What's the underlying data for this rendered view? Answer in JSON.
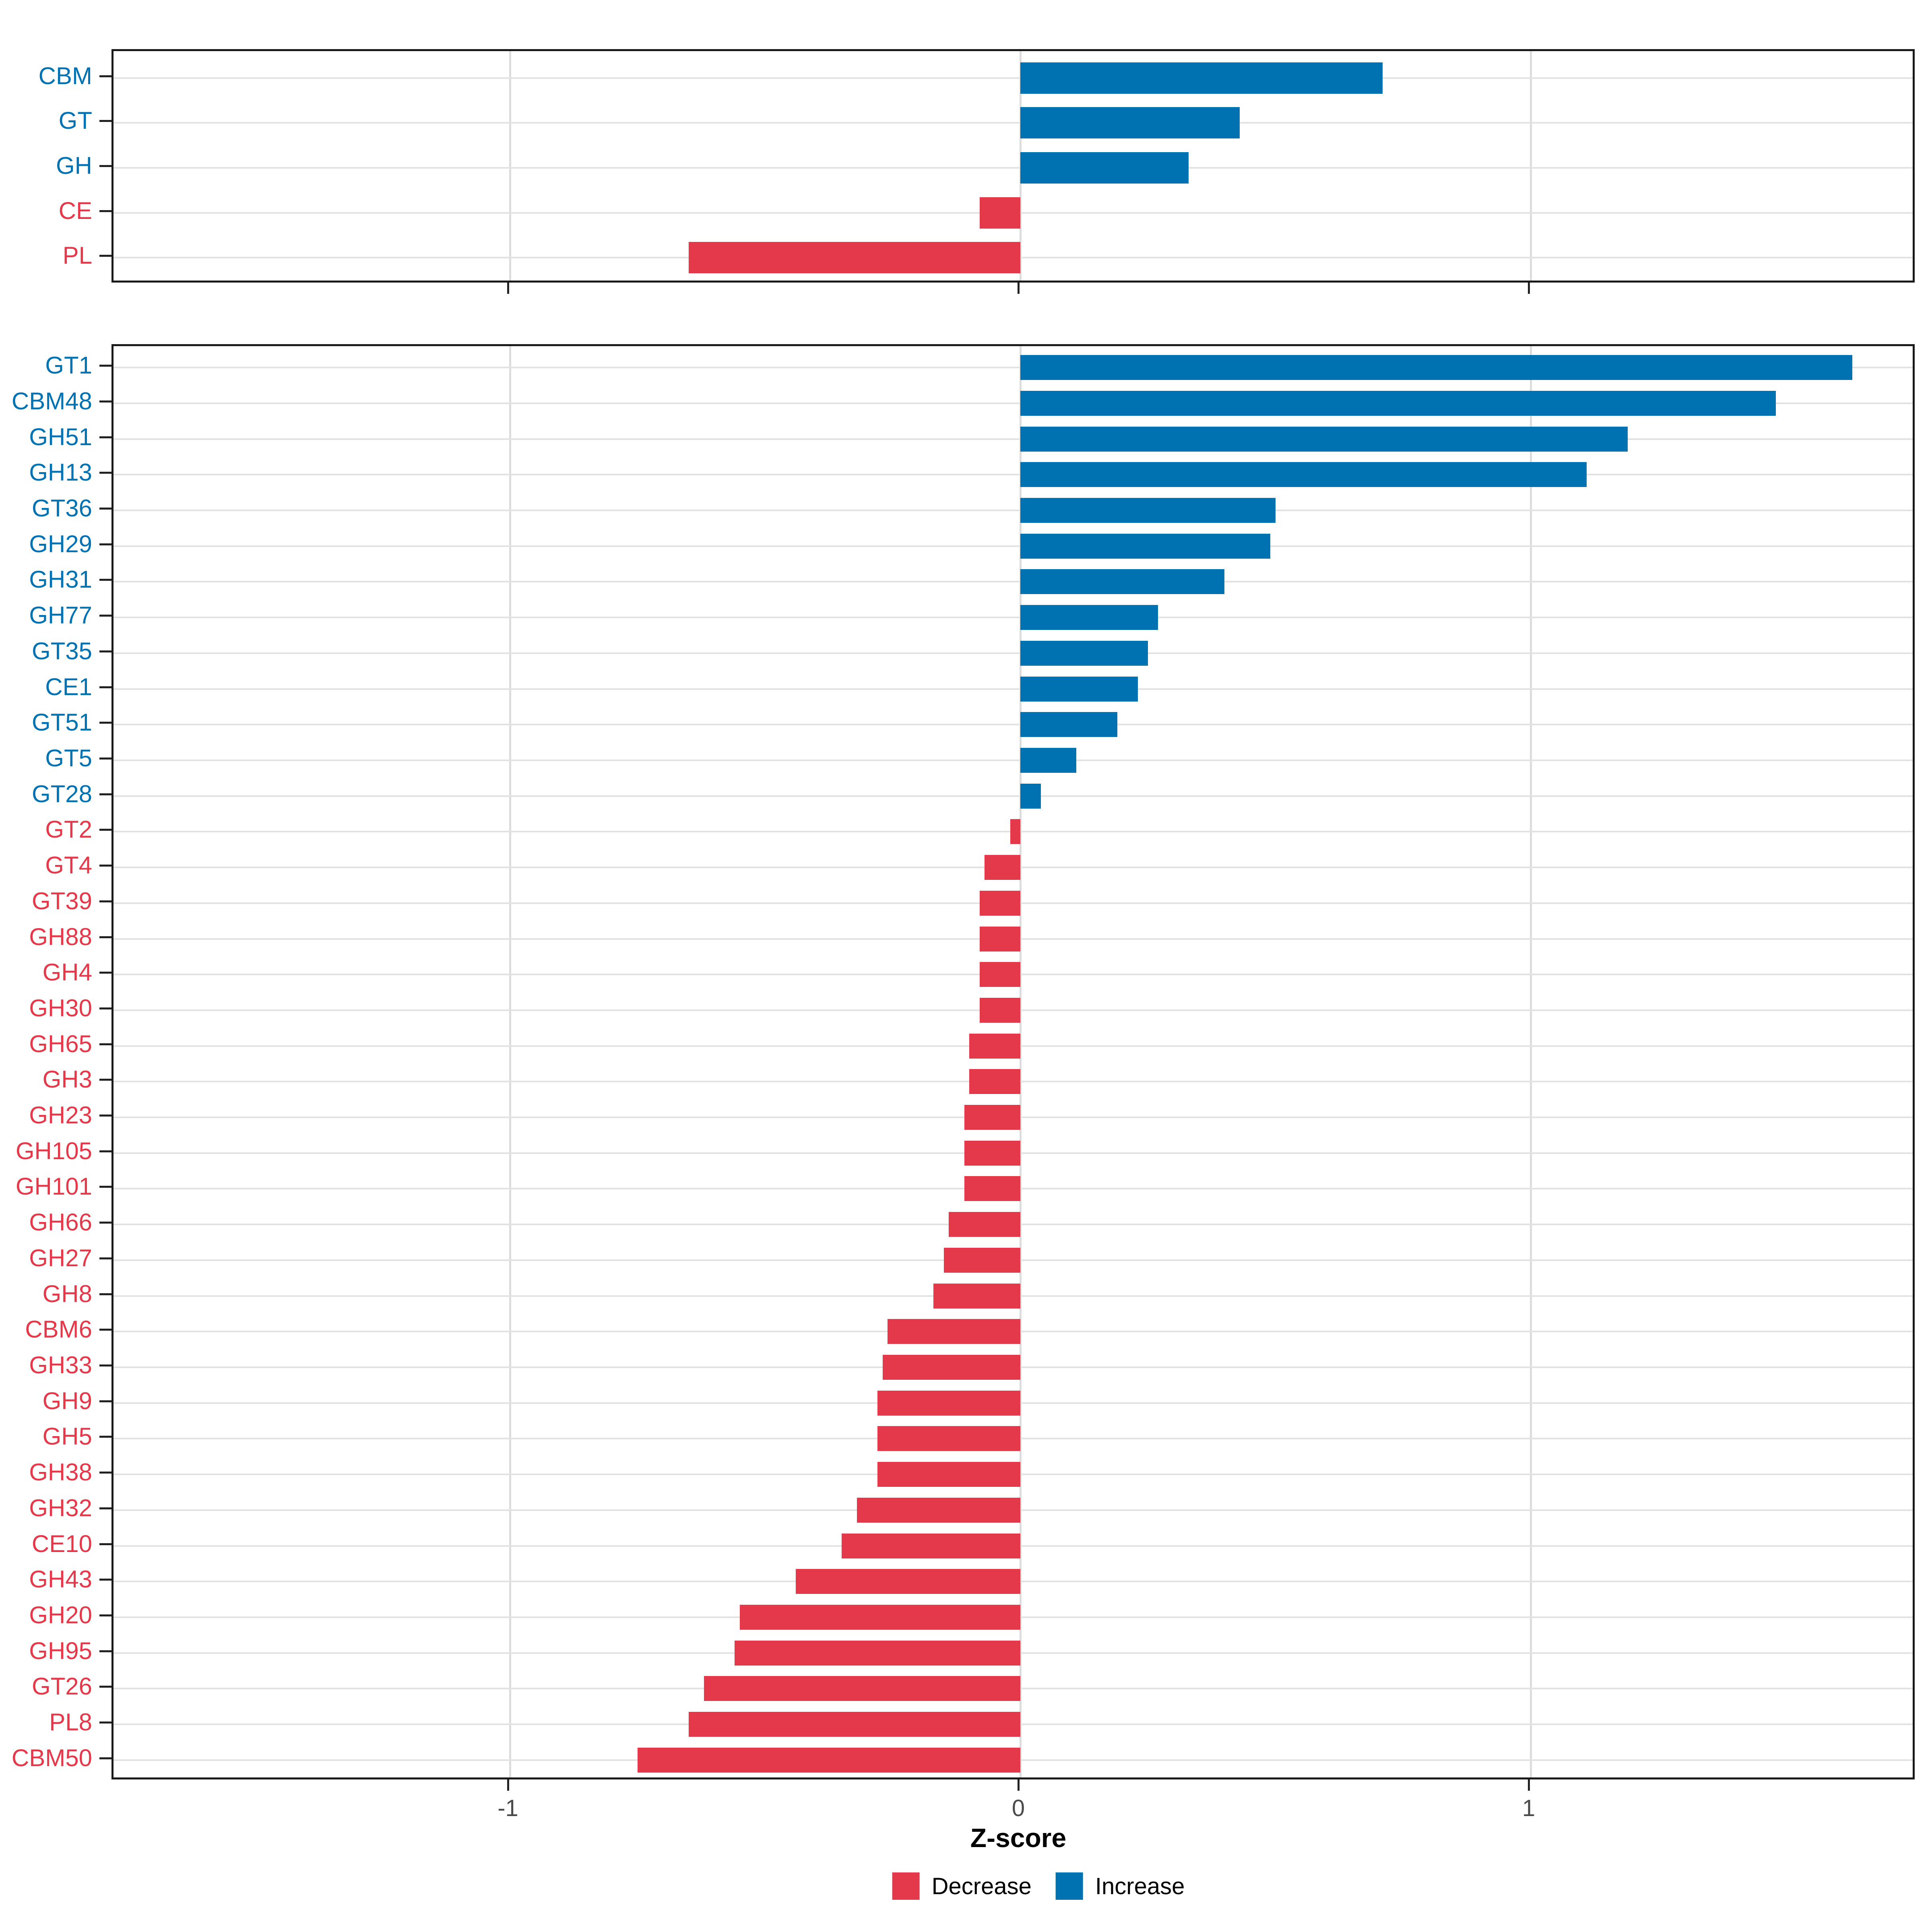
{
  "figure": {
    "x_axis_title": "Z-score",
    "x_tick_labels": [
      "-1",
      "0",
      "1"
    ]
  },
  "chart_data": {
    "type": "bar",
    "orientation": "horizontal",
    "title": "",
    "xlabel": "Z-score",
    "ylabel": "",
    "x_tick_values": [
      -1,
      0,
      1
    ],
    "xlim": [
      -1.78,
      1.76
    ],
    "grid": "major vertical gridlines at -1, 0, 1 and one light horizontal gridline per category row",
    "legend_position": "bottom",
    "legend": [
      {
        "key": "decrease",
        "label": "Decrease",
        "color": "#e4394a"
      },
      {
        "key": "increase",
        "label": "Increase",
        "color": "#0072b2"
      }
    ],
    "color_rule": "bars and category labels are blue (#0072b2) for positive z-scores (Increase) and red (#e4394a) for negative z-scores (Decrease)",
    "panels": [
      {
        "name": "enzyme-families",
        "categories": [
          "CBM",
          "GT",
          "GH",
          "CE",
          "PL"
        ],
        "values": [
          0.71,
          0.43,
          0.33,
          -0.08,
          -0.65
        ]
      },
      {
        "name": "enzyme-subfamilies",
        "categories": [
          "GT1",
          "CBM48",
          "GH51",
          "GH13",
          "GT36",
          "GH29",
          "GH31",
          "GH77",
          "GT35",
          "CE1",
          "GT51",
          "GT5",
          "GT28",
          "GT2",
          "GT4",
          "GT39",
          "GH88",
          "GH4",
          "GH30",
          "GH65",
          "GH3",
          "GH23",
          "GH105",
          "GH101",
          "GH66",
          "GH27",
          "GH8",
          "CBM6",
          "GH33",
          "GH9",
          "GH5",
          "GH38",
          "GH32",
          "CE10",
          "GH43",
          "GH20",
          "GH95",
          "GT26",
          "PL8",
          "CBM50"
        ],
        "values": [
          1.63,
          1.48,
          1.19,
          1.11,
          0.5,
          0.49,
          0.4,
          0.27,
          0.25,
          0.23,
          0.19,
          0.11,
          0.04,
          -0.02,
          -0.07,
          -0.08,
          -0.08,
          -0.08,
          -0.08,
          -0.1,
          -0.1,
          -0.11,
          -0.11,
          -0.11,
          -0.14,
          -0.15,
          -0.17,
          -0.26,
          -0.27,
          -0.28,
          -0.28,
          -0.28,
          -0.32,
          -0.35,
          -0.44,
          -0.55,
          -0.56,
          -0.62,
          -0.65,
          -0.75
        ]
      }
    ]
  }
}
